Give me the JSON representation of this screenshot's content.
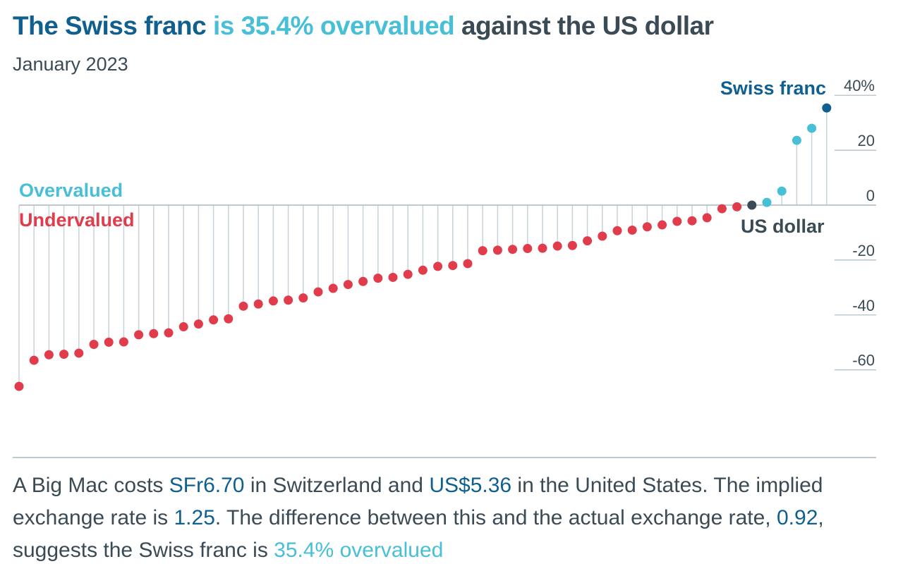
{
  "title": {
    "part1": "The Swiss franc",
    "part2": "is 35.4% overvalued",
    "part3": "against the US dollar"
  },
  "subtitle": "January 2023",
  "labels": {
    "overvalued": "Overvalued",
    "undervalued": "Undervalued",
    "swiss_franc": "Swiss franc",
    "us_dollar": "US dollar"
  },
  "colors": {
    "overvalued": "#47bfd6",
    "undervalued": "#e03c4b",
    "highlight": "#0f5f8f",
    "base": "#3b4b55",
    "stem": "#c8d3da",
    "grid": "#a9b7c0"
  },
  "caption": {
    "s1": "A Big Mac costs",
    "v1": "SFr6.70",
    "s2": "in Switzerland and",
    "v2": "US$5.36",
    "s3": "in the United States. The implied exchange rate is",
    "v3": "1.25",
    "s4": ". The difference between this and the actual exchange rate,",
    "v4": "0.92",
    "s5": ", suggests the Swiss franc is",
    "v5": "35.4% overvalued"
  },
  "chart_data": {
    "type": "scatter",
    "style": "lollipop",
    "yaxis": {
      "ticks": [
        40,
        20,
        0,
        -20,
        -40,
        -60
      ],
      "tick_labels": [
        "40%",
        "20",
        "0",
        "-20",
        "-40",
        "-60"
      ],
      "ylim": [
        -75,
        44
      ],
      "position": "right"
    },
    "values": [
      -66,
      -56.5,
      -54.5,
      -54.3,
      -53.9,
      -50.7,
      -49.9,
      -49.8,
      -47.2,
      -46.8,
      -46.5,
      -44.3,
      -43.3,
      -41.8,
      -41.4,
      -36.8,
      -36.0,
      -34.9,
      -34.6,
      -33.8,
      -31.6,
      -30.3,
      -28.9,
      -27.8,
      -26.6,
      -26.3,
      -25.2,
      -23.7,
      -22.3,
      -22.0,
      -21.3,
      -16.6,
      -16.4,
      -16.1,
      -15.8,
      -15.7,
      -14.9,
      -14.7,
      -13.0,
      -11.3,
      -9.3,
      -9.1,
      -7.9,
      -7.2,
      -5.9,
      -5.7,
      -4.6,
      -1.3,
      -0.6,
      0,
      1.0,
      5.1,
      23.6,
      28.0,
      35.4
    ],
    "highlight": {
      "us_dollar_index": 49,
      "swiss_franc_index": 54
    }
  }
}
